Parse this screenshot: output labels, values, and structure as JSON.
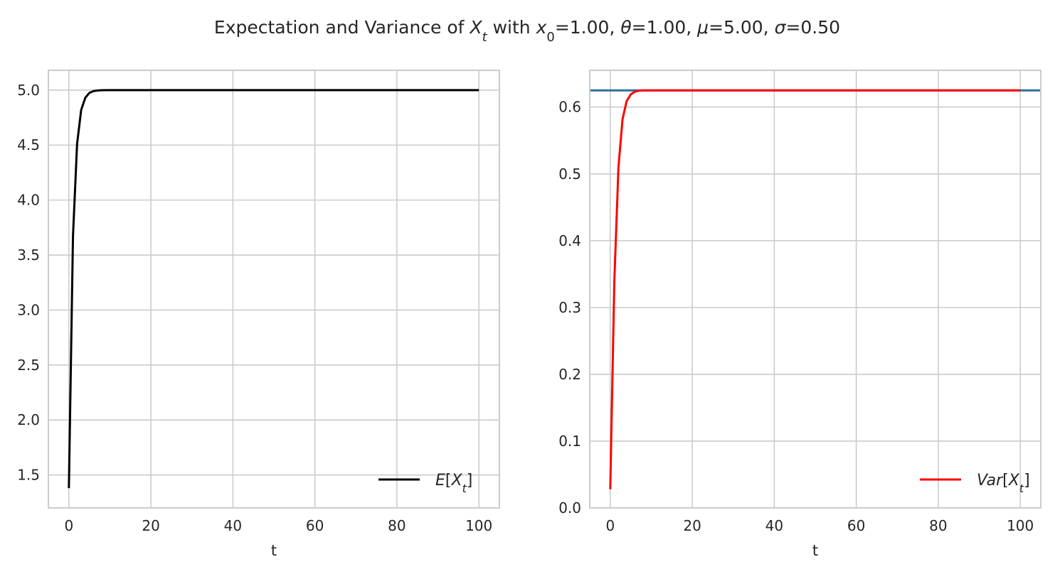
{
  "chart_data": {
    "title_parts": [
      {
        "t": "Expectation and Variance of ",
        "it": false,
        "sub": false
      },
      {
        "t": "X",
        "it": true,
        "sub": false
      },
      {
        "t": "t",
        "it": true,
        "sub": true
      },
      {
        "t": " with ",
        "it": false,
        "sub": false
      },
      {
        "t": "x",
        "it": true,
        "sub": false
      },
      {
        "t": "0",
        "it": false,
        "sub": true
      },
      {
        "t": "=1.00, ",
        "it": false,
        "sub": false
      },
      {
        "t": "θ",
        "it": true,
        "sub": false
      },
      {
        "t": "=1.00, ",
        "it": false,
        "sub": false
      },
      {
        "t": "μ",
        "it": true,
        "sub": false
      },
      {
        "t": "=5.00, ",
        "it": false,
        "sub": false
      },
      {
        "t": "σ",
        "it": true,
        "sub": false
      },
      {
        "t": "=0.50",
        "it": false,
        "sub": false
      }
    ],
    "params": {
      "x0": 1.0,
      "theta": 1.0,
      "mu": 5.0,
      "sigma": 0.5
    },
    "panels": [
      {
        "type": "line",
        "xlabel": "t",
        "xlim": [
          -5,
          105
        ],
        "ylim": [
          1.2,
          5.18
        ],
        "xticks": [
          0,
          20,
          40,
          60,
          80,
          100
        ],
        "xtick_labels": [
          "0",
          "20",
          "40",
          "60",
          "80",
          "100"
        ],
        "yticks": [
          1.5,
          2.0,
          2.5,
          3.0,
          3.5,
          4.0,
          4.5,
          5.0
        ],
        "ytick_labels": [
          "1.5",
          "2.0",
          "2.5",
          "3.0",
          "3.5",
          "4.0",
          "4.5",
          "5.0"
        ],
        "grid": true,
        "legend_position": "lower-right",
        "series": [
          {
            "name_parts": [
              {
                "t": "E",
                "it": true,
                "sub": false
              },
              {
                "t": "[",
                "it": false,
                "sub": false
              },
              {
                "t": "X",
                "it": true,
                "sub": false
              },
              {
                "t": "t",
                "it": true,
                "sub": true
              },
              {
                "t": "]",
                "it": false,
                "sub": false
              }
            ],
            "color": "#000000",
            "x": [
              0,
              1,
              2,
              3,
              4,
              5,
              6,
              7,
              8,
              10,
              20,
              40,
              60,
              80,
              100
            ],
            "y": [
              1.38,
              3.67,
              4.51,
              4.82,
              4.93,
              4.975,
              4.991,
              4.997,
              4.999,
              5.0,
              5.0,
              5.0,
              5.0,
              5.0,
              5.0
            ]
          }
        ]
      },
      {
        "type": "line",
        "xlabel": "t",
        "xlim": [
          -5,
          105
        ],
        "ylim": [
          0.0,
          0.655
        ],
        "xticks": [
          0,
          20,
          40,
          60,
          80,
          100
        ],
        "xtick_labels": [
          "0",
          "20",
          "40",
          "60",
          "80",
          "100"
        ],
        "yticks": [
          0.0,
          0.1,
          0.2,
          0.3,
          0.4,
          0.5,
          0.6
        ],
        "ytick_labels": [
          "0.0",
          "0.1",
          "0.2",
          "0.3",
          "0.4",
          "0.5",
          "0.6"
        ],
        "grid": true,
        "legend_position": "lower-right",
        "hline": {
          "y": 0.625,
          "color": "#2e6f9e"
        },
        "series": [
          {
            "name_parts": [
              {
                "t": "Var",
                "it": true,
                "sub": false
              },
              {
                "t": "[",
                "it": false,
                "sub": false
              },
              {
                "t": "X",
                "it": true,
                "sub": false
              },
              {
                "t": "t",
                "it": true,
                "sub": true
              },
              {
                "t": "]",
                "it": false,
                "sub": false
              }
            ],
            "color": "#ff0000",
            "x": [
              0,
              1,
              2,
              3,
              4,
              5,
              6,
              7,
              8,
              10,
              20,
              40,
              60,
              80,
              100
            ],
            "y": [
              0.028,
              0.34,
              0.51,
              0.582,
              0.609,
              0.619,
              0.623,
              0.6245,
              0.625,
              0.625,
              0.625,
              0.625,
              0.625,
              0.625,
              0.625
            ]
          }
        ]
      }
    ]
  }
}
